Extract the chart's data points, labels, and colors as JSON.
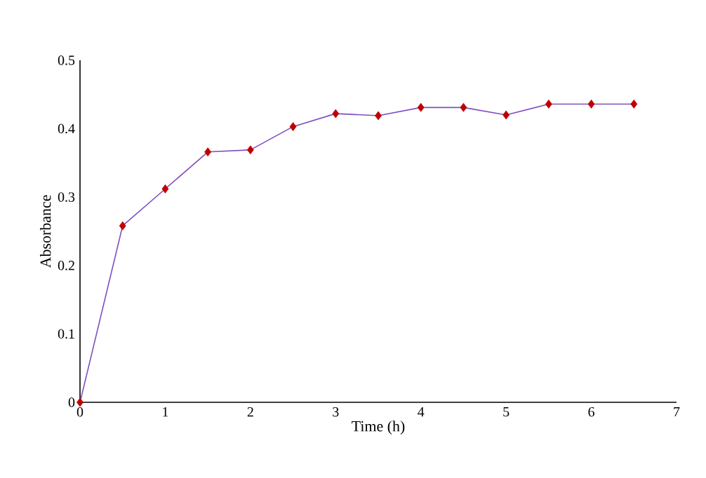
{
  "chart_data": {
    "type": "line",
    "xlabel": "Time (h)",
    "ylabel": "Absorbance",
    "x": [
      0,
      0.5,
      1,
      1.5,
      2,
      2.5,
      3,
      3.5,
      4,
      4.5,
      5,
      5.5,
      6,
      6.5
    ],
    "series": [
      {
        "color": "#7f4fbf",
        "colors": [
          "#c00000",
          "#c00000",
          "#c00000",
          "#c00000",
          "#c00000",
          "#c00000",
          "#c00000",
          "#c00000",
          "#c00000",
          "#c00000",
          "#c00000",
          "#c00000",
          "#c00000",
          "#c00000"
        ],
        "values": [
          0,
          0.258,
          0.312,
          0.366,
          0.369,
          0.403,
          0.422,
          0.419,
          0.431,
          0.431,
          0.42,
          0.436,
          0.436,
          0.436
        ]
      }
    ],
    "xlim": [
      0,
      7
    ],
    "ylim": [
      0,
      0.5
    ],
    "xticks": [
      0,
      1,
      2,
      3,
      4,
      5,
      6,
      7
    ],
    "yticks": [
      0,
      0.1,
      0.2,
      0.3,
      0.4,
      0.5
    ],
    "marker": "diamond",
    "grid": false
  }
}
